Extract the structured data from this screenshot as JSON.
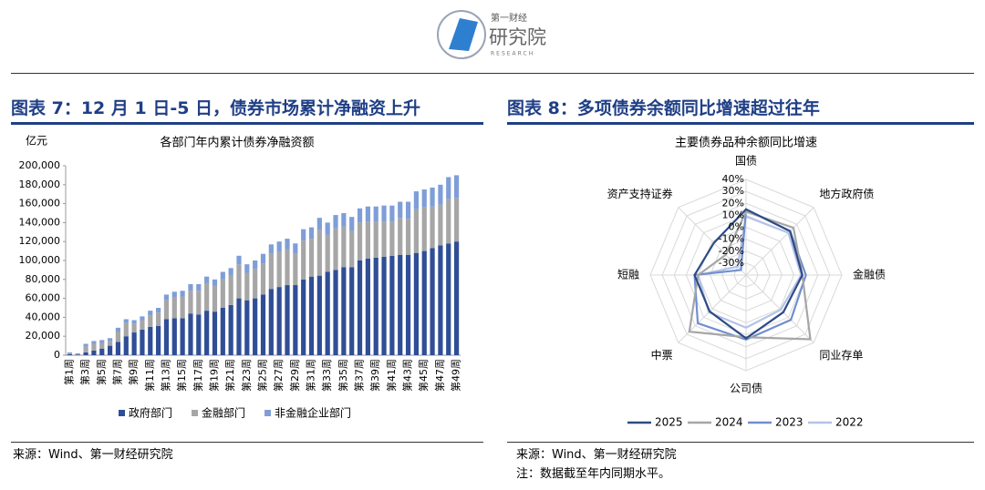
{
  "logo": {
    "top": "第一财经",
    "main": "研究院",
    "sub": "RESEARCH"
  },
  "chart_data": [
    {
      "type": "bar",
      "stacked": true,
      "caption": "图表 7：12 月 1 日-5 日，债券市场累计净融资上升",
      "title": "各部门年内累计债券净融资额",
      "unit": "亿元",
      "categories": [
        "第1周",
        null,
        "第3周",
        null,
        "第5周",
        null,
        "第7周",
        null,
        "第9周",
        null,
        "第11周",
        null,
        "第13周",
        null,
        "第15周",
        null,
        "第17周",
        null,
        "第19周",
        null,
        "第21周",
        null,
        "第23周",
        null,
        "第25周",
        null,
        "第27周",
        null,
        "第29周",
        null,
        "第31周",
        null,
        "第33周",
        null,
        "第35周",
        null,
        "第37周",
        null,
        "第39周",
        null,
        "第41周",
        null,
        "第43周",
        null,
        "第45周",
        null,
        "第47周",
        null,
        "第49周"
      ],
      "series": [
        {
          "name": "政府部门",
          "color": "#2f4e96",
          "values": [
            1000,
            500,
            3000,
            5000,
            7000,
            10000,
            14000,
            20000,
            24000,
            27000,
            30000,
            31000,
            38000,
            39000,
            39000,
            44000,
            43000,
            47000,
            46000,
            50000,
            53000,
            60000,
            58000,
            60000,
            64000,
            70000,
            72000,
            74000,
            74000,
            80000,
            83000,
            84000,
            88000,
            90000,
            93000,
            93000,
            100000,
            102000,
            103000,
            104000,
            105000,
            106000,
            106000,
            108000,
            110000,
            113000,
            116000,
            118000,
            120000
          ]
        },
        {
          "name": "金融部门",
          "color": "#a6a6a6",
          "values": [
            1000,
            500,
            6000,
            7000,
            6000,
            5000,
            11000,
            14000,
            9000,
            10000,
            12000,
            14000,
            20000,
            22000,
            23000,
            24000,
            25000,
            29000,
            27000,
            30000,
            31000,
            36000,
            29000,
            31000,
            33000,
            37000,
            37000,
            38000,
            33000,
            41000,
            40000,
            48000,
            39000,
            44000,
            43000,
            38000,
            40000,
            39000,
            38000,
            37000,
            36000,
            39000,
            38000,
            46000,
            46000,
            44000,
            43000,
            47000,
            46000
          ]
        },
        {
          "name": "非金融企业部门",
          "color": "#7f9ed8",
          "values": [
            1000,
            1000,
            3000,
            3000,
            3000,
            3000,
            4000,
            4000,
            4000,
            4000,
            5000,
            5000,
            6000,
            6000,
            6000,
            7000,
            7000,
            7000,
            7000,
            8000,
            8000,
            9000,
            9000,
            9000,
            10000,
            10000,
            11000,
            11000,
            11000,
            12000,
            12000,
            13000,
            13000,
            14000,
            14000,
            15000,
            15000,
            16000,
            16000,
            17000,
            17000,
            17000,
            18000,
            19000,
            19000,
            20000,
            21000,
            23000,
            24000
          ]
        }
      ],
      "ylim": [
        0,
        200000
      ],
      "yticks": [
        0,
        {
          "value": 20000,
          "label": "20,000"
        },
        {
          "value": 40000,
          "label": "40,000"
        },
        {
          "value": 60000,
          "label": "60,000"
        },
        {
          "value": 80000,
          "label": "80,000"
        },
        {
          "value": 100000,
          "label": "100,000"
        },
        {
          "value": 120000,
          "label": "120,000"
        },
        {
          "value": 140000,
          "label": "140,000"
        },
        {
          "value": 160000,
          "label": "160,000"
        },
        {
          "value": 180000,
          "label": "180,000"
        },
        {
          "value": 200000,
          "label": "200,000"
        }
      ],
      "legend": "bottom",
      "source": "来源：Wind、第一财经研究院"
    },
    {
      "type": "radar",
      "caption": "图表 8：多项债券余额同比增速超过往年",
      "title": "主要债券品种余额同比增速",
      "categories": [
        "国债",
        "地方政府债",
        "金融债",
        "同业存单",
        "公司债",
        "中票",
        "短融",
        "资产支持证券"
      ],
      "series": [
        {
          "name": "2025",
          "color": "#2e4a87",
          "values": [
            15,
            12,
            7,
            4,
            13,
            3,
            3,
            -2
          ]
        },
        {
          "name": "2024",
          "color": "#a6a6a6",
          "values": [
            13,
            16,
            7,
            36,
            12,
            27,
            0,
            -16
          ]
        },
        {
          "name": "2023",
          "color": "#6f8fd0",
          "values": [
            15,
            12,
            10,
            13,
            14,
            17,
            3,
            -34
          ]
        },
        {
          "name": "2022",
          "color": "#b4c3e6",
          "values": [
            9,
            10,
            6,
            1,
            4,
            4,
            0,
            -30
          ]
        }
      ],
      "rlim": [
        -40,
        40
      ],
      "rticks": [
        {
          "value": 40,
          "label": "40%"
        },
        {
          "value": 30,
          "label": "30%"
        },
        {
          "value": 20,
          "label": "20%"
        },
        {
          "value": 10,
          "label": "10%"
        },
        {
          "value": 0,
          "label": "0%"
        },
        {
          "value": -10,
          "label": "-10%"
        },
        {
          "value": -20,
          "label": "-20%"
        },
        {
          "value": -30,
          "label": "-30%"
        }
      ],
      "legend": "bottom",
      "source": "来源：Wind、第一财经研究院",
      "note": "注：数据截至年内同期水平。"
    }
  ]
}
